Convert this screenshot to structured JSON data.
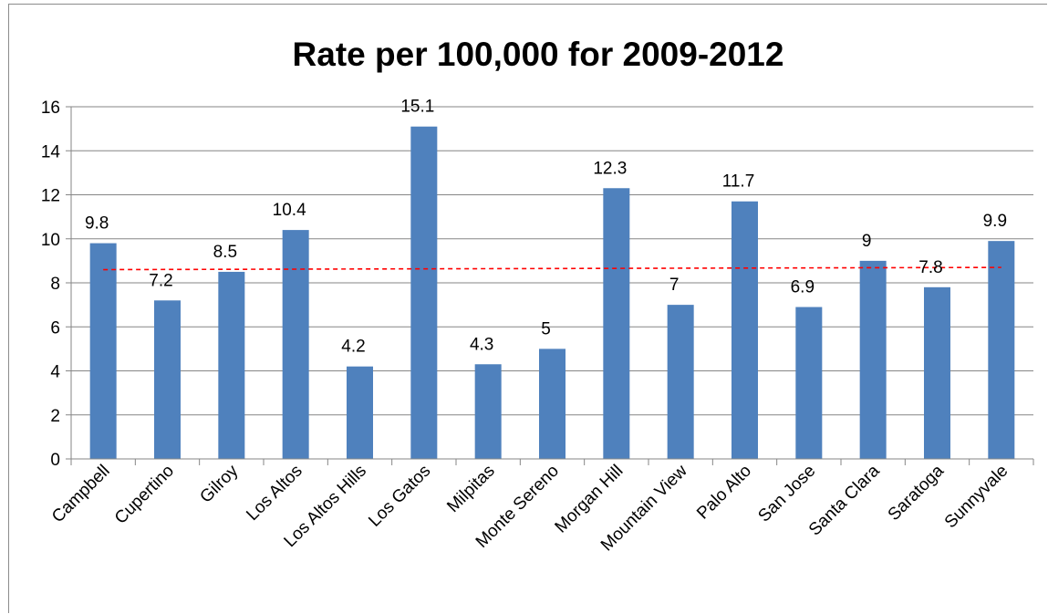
{
  "chart_data": {
    "type": "bar",
    "title": "Rate per 100,000 for 2009-2012",
    "xlabel": "",
    "ylabel": "",
    "ylim": [
      0,
      16
    ],
    "yticks": [
      "0",
      "2",
      "4",
      "6",
      "8",
      "10",
      "12",
      "14",
      "16"
    ],
    "grid": true,
    "legend": "none",
    "categories": [
      "Campbell",
      "Cupertino",
      "Gilroy",
      "Los Altos",
      "Los Altos Hills",
      "Los Gatos",
      "Milpitas",
      "Monte Sereno",
      "Morgan Hill",
      "Mountain View",
      "Palo Alto",
      "San Jose",
      "Santa Clara",
      "Saratoga",
      "Sunnyvale"
    ],
    "series": [
      {
        "values": [
          9.8,
          7.2,
          8.5,
          10.4,
          4.2,
          15.1,
          4.3,
          5,
          12.3,
          7,
          11.7,
          6.9,
          9,
          7.8,
          9.9
        ],
        "color": "#4f81bd"
      }
    ],
    "data_labels": [
      "9.8",
      "7.2",
      "8.5",
      "10.4",
      "4.2",
      "15.1",
      "4.3",
      "5",
      "12.3",
      "7",
      "11.7",
      "6.9",
      "9",
      "7.8",
      "9.9"
    ],
    "trendline": {
      "type": "linear",
      "style": "dashed",
      "color": "#ff0000",
      "start": 8.6,
      "end": 8.7
    }
  }
}
